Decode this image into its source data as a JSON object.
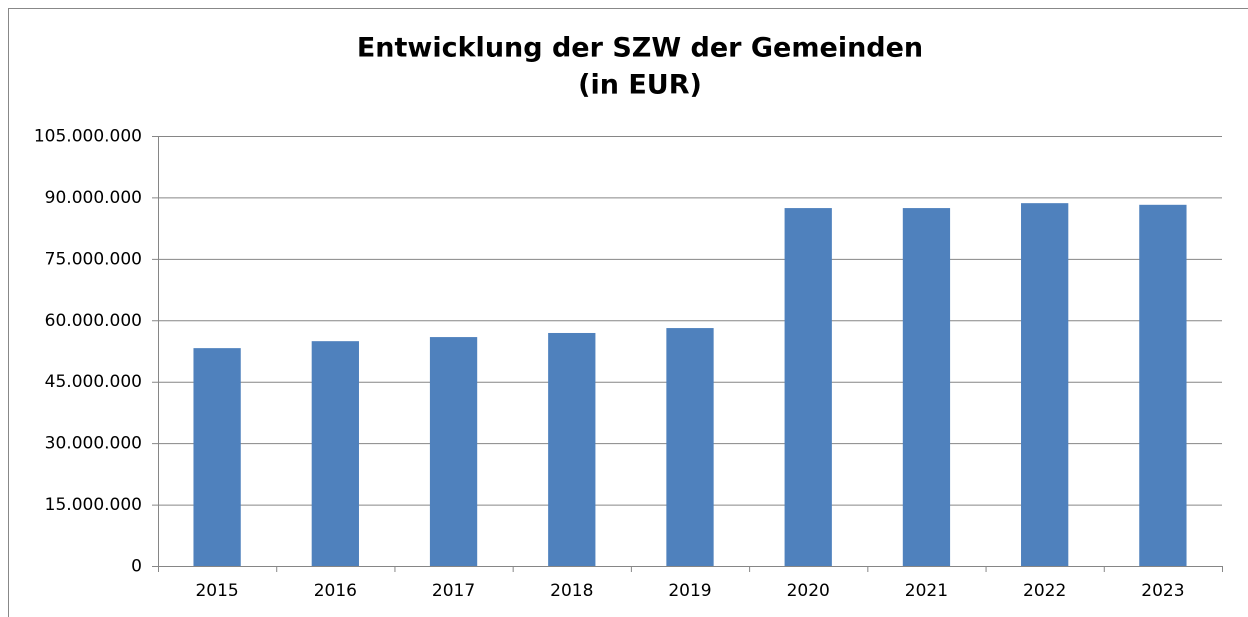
{
  "chart_data": {
    "type": "bar",
    "title": "Entwicklung der SZW der Gemeinden",
    "subtitle": "(in EUR)",
    "categories": [
      "2015",
      "2016",
      "2017",
      "2018",
      "2019",
      "2020",
      "2021",
      "2022",
      "2023"
    ],
    "values": [
      53200000,
      54900000,
      55900000,
      56900000,
      58100000,
      87400000,
      87400000,
      88600000,
      88200000
    ],
    "color": "#4f81bd",
    "ylim": [
      0,
      105000000
    ],
    "yticks": [
      0,
      {
        "value": 15000000,
        "label": "15.000.000"
      },
      {
        "value": 30000000,
        "label": "30.000.000"
      },
      {
        "value": 45000000,
        "label": "45.000.000"
      },
      {
        "value": 60000000,
        "label": "60.000.000"
      },
      {
        "value": 75000000,
        "label": "75.000.000"
      },
      {
        "value": 90000000,
        "label": "90.000.000"
      },
      {
        "value": 105000000,
        "label": "105.000.000"
      }
    ],
    "grid": true
  }
}
